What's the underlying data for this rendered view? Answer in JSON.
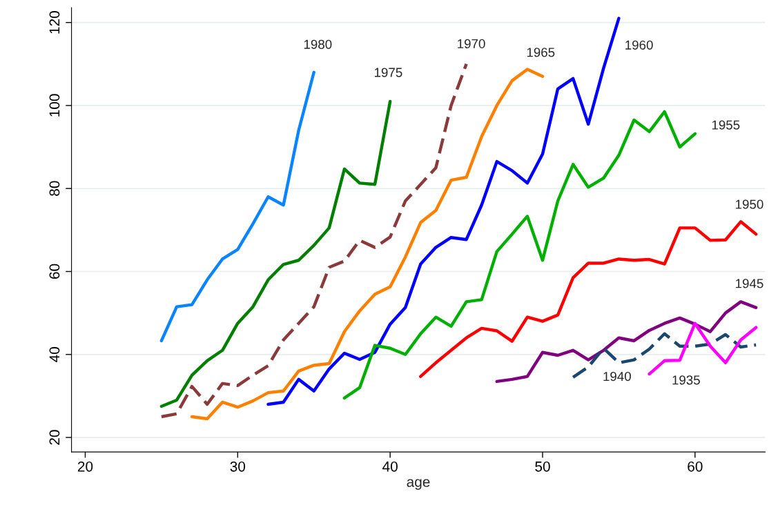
{
  "chart_data": {
    "type": "line",
    "xlabel": "age",
    "xlim": [
      19.1,
      64.6
    ],
    "ylim": [
      16.5,
      123.6
    ],
    "xticks": [
      20,
      30,
      40,
      50,
      60
    ],
    "yticks": [
      20,
      40,
      60,
      80,
      100,
      120
    ],
    "grid": "y",
    "legend": false,
    "marker": "none",
    "series": [
      {
        "name": "1980",
        "color": "#0a84ff",
        "x": [
          25,
          26,
          27,
          28,
          29,
          30,
          31,
          32,
          33,
          34,
          35
        ],
        "values": [
          43.3,
          51.5,
          52,
          58,
          63,
          65.3,
          71.5,
          78,
          76,
          94,
          108
        ]
      },
      {
        "name": "1975",
        "color": "#007f00",
        "x": [
          25,
          26,
          27,
          28,
          29,
          30,
          31,
          32,
          33,
          34,
          35,
          36,
          37,
          38,
          39,
          40
        ],
        "values": [
          27.5,
          29,
          35,
          38.5,
          41,
          47.5,
          51.5,
          58,
          61.7,
          62.7,
          66.3,
          70.5,
          84.7,
          81.3,
          81,
          101
        ]
      },
      {
        "name": "1970",
        "color": "#8b3a3a",
        "line_style": "dashed",
        "x": [
          25,
          26,
          27,
          28,
          29,
          30,
          31,
          32,
          33,
          34,
          35,
          36,
          37,
          38,
          39,
          40,
          41,
          42,
          43,
          44,
          45
        ],
        "values": [
          25,
          25.7,
          32.3,
          28,
          33,
          32.5,
          35,
          37.3,
          43.5,
          47.5,
          51.5,
          61,
          62.5,
          67.5,
          65.8,
          68.3,
          77,
          81,
          85,
          100,
          110
        ]
      },
      {
        "name": "1965",
        "color": "#ff8000",
        "x": [
          27,
          28,
          29,
          30,
          31,
          32,
          33,
          34,
          35,
          36,
          37,
          38,
          39,
          40,
          41,
          42,
          43,
          44,
          45,
          46,
          47,
          48,
          49,
          50
        ],
        "values": [
          25,
          24.5,
          28.5,
          27.3,
          28.8,
          30.8,
          31.2,
          36,
          37.4,
          37.8,
          45.5,
          50.5,
          54.5,
          56.3,
          63.5,
          71.8,
          74.7,
          82,
          82.7,
          92.5,
          100,
          106,
          108.7,
          107
        ]
      },
      {
        "name": "1960",
        "color": "#0000ff",
        "x": [
          32,
          33,
          34,
          35,
          36,
          37,
          38,
          39,
          40,
          41,
          42,
          43,
          44,
          45,
          46,
          47,
          48,
          49,
          50,
          51,
          52,
          53,
          54,
          55
        ],
        "values": [
          28,
          28.5,
          34,
          31.2,
          36.5,
          40.3,
          38.8,
          40.5,
          47.3,
          51.3,
          61.8,
          65.8,
          68.2,
          67.7,
          76,
          86.5,
          84.3,
          81.3,
          88.3,
          104,
          106.5,
          95.5,
          109,
          121
        ]
      },
      {
        "name": "1955",
        "color": "#00b000",
        "x": [
          37,
          38,
          39,
          40,
          41,
          42,
          43,
          44,
          45,
          46,
          47,
          48,
          49,
          50,
          51,
          52,
          53,
          54,
          55,
          56,
          57,
          58,
          59,
          60
        ],
        "values": [
          29.5,
          32,
          42.2,
          41.5,
          40,
          45,
          49,
          46.8,
          52.7,
          53.2,
          64.8,
          69,
          73.3,
          62.7,
          77,
          85.8,
          80.3,
          82.5,
          88,
          96.5,
          93.7,
          98.5,
          90,
          93.2
        ]
      },
      {
        "name": "1950",
        "color": "#ff0000",
        "x": [
          42,
          43,
          44,
          45,
          46,
          47,
          48,
          49,
          50,
          51,
          52,
          53,
          54,
          55,
          56,
          57,
          58,
          59,
          60,
          61,
          62,
          63,
          64
        ],
        "values": [
          34.7,
          38,
          41,
          44,
          46.3,
          45.7,
          43.2,
          49,
          48,
          49.5,
          58.5,
          62,
          62,
          63,
          62.7,
          62.9,
          61.8,
          70.5,
          70.5,
          67.5,
          67.6,
          72,
          69
        ]
      },
      {
        "name": "1945",
        "color": "#800080",
        "x": [
          47,
          48,
          49,
          50,
          51,
          52,
          53,
          54,
          55,
          56,
          57,
          58,
          59,
          60,
          61,
          62,
          63,
          64
        ],
        "values": [
          33.5,
          34,
          34.7,
          40.5,
          39.8,
          41,
          38.7,
          41,
          44,
          43.3,
          45.8,
          47.5,
          48.8,
          47.3,
          45.5,
          50,
          52.7,
          51.3
        ]
      },
      {
        "name": "1940",
        "color": "#1a476f",
        "line_style": "dashed",
        "x": [
          52,
          53,
          54,
          55,
          56,
          57,
          58,
          59,
          60,
          61,
          62,
          63,
          64
        ],
        "values": [
          34.5,
          37,
          41.5,
          38,
          38.7,
          41.3,
          45,
          42,
          42,
          42.5,
          44.8,
          41.8,
          42.3
        ]
      },
      {
        "name": "1935",
        "color": "#ff00ff",
        "x": [
          57,
          58,
          59,
          60,
          61,
          62,
          63,
          64
        ],
        "values": [
          35.3,
          38.5,
          38.6,
          47.5,
          42,
          38,
          43.5,
          46.5
        ]
      }
    ]
  }
}
